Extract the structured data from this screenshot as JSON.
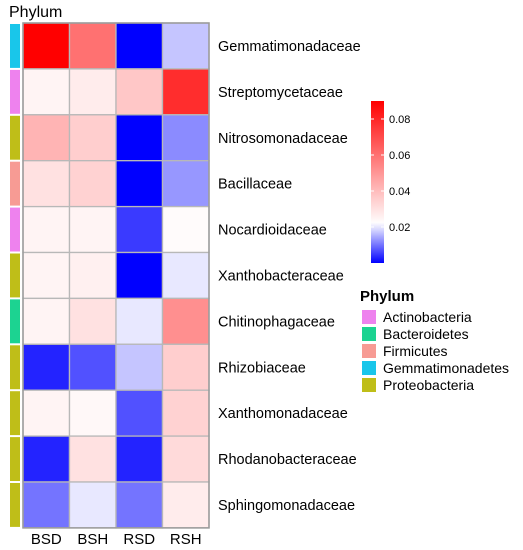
{
  "chart_data": {
    "type": "heatmap",
    "annotation_title": "Phylum",
    "columns": [
      "BSD",
      "BSH",
      "RSD",
      "RSH"
    ],
    "rows": [
      {
        "name": "Gemmatimonadaceae",
        "phylum": "Gemmatimonadetes",
        "values": [
          0.09,
          0.06,
          0.0,
          0.017
        ]
      },
      {
        "name": "Streptomycetaceae",
        "phylum": "Actinobacteria",
        "values": [
          0.025,
          0.027,
          0.037,
          0.078
        ]
      },
      {
        "name": "Nitrosomonadaceae",
        "phylum": "Proteobacteria",
        "values": [
          0.042,
          0.035,
          0.0,
          0.012
        ]
      },
      {
        "name": "Bacillaceae",
        "phylum": "Firmicutes",
        "values": [
          0.03,
          0.034,
          0.0,
          0.013
        ]
      },
      {
        "name": "Nocardioidaceae",
        "phylum": "Actinobacteria",
        "values": [
          0.025,
          0.025,
          0.005,
          0.023
        ]
      },
      {
        "name": "Xanthobacteraceae",
        "phylum": "Proteobacteria",
        "values": [
          0.025,
          0.026,
          0.0,
          0.02
        ]
      },
      {
        "name": "Chitinophagaceae",
        "phylum": "Bacteroidetes",
        "values": [
          0.025,
          0.03,
          0.02,
          0.052
        ]
      },
      {
        "name": "Rhizobiaceae",
        "phylum": "Proteobacteria",
        "values": [
          0.003,
          0.007,
          0.017,
          0.035
        ]
      },
      {
        "name": "Xanthomonadaceae",
        "phylum": "Proteobacteria",
        "values": [
          0.025,
          0.024,
          0.007,
          0.034
        ]
      },
      {
        "name": "Rhodanobacteraceae",
        "phylum": "Proteobacteria",
        "values": [
          0.003,
          0.03,
          0.003,
          0.032
        ]
      },
      {
        "name": "Sphingomonadaceae",
        "phylum": "Proteobacteria",
        "values": [
          0.01,
          0.02,
          0.01,
          0.027
        ]
      }
    ],
    "colorbar": {
      "min": 0.0,
      "mid": 0.022,
      "max": 0.09,
      "low_color": "#0000ff",
      "mid_color": "#ffffff",
      "high_color": "#ff0000",
      "ticks": [
        0.02,
        0.04,
        0.06,
        0.08
      ],
      "tick_labels": [
        "0.02",
        "0.04",
        "0.06",
        "0.08"
      ]
    },
    "legend": {
      "title": "Phylum",
      "items": [
        {
          "name": "Actinobacteria",
          "color": "#ee82ee"
        },
        {
          "name": "Bacteroidetes",
          "color": "#1cd391"
        },
        {
          "name": "Firmicutes",
          "color": "#f79b94"
        },
        {
          "name": "Gemmatimonadetes",
          "color": "#19c6ea"
        },
        {
          "name": "Proteobacteria",
          "color": "#bfbe18"
        }
      ]
    },
    "grid": true
  }
}
